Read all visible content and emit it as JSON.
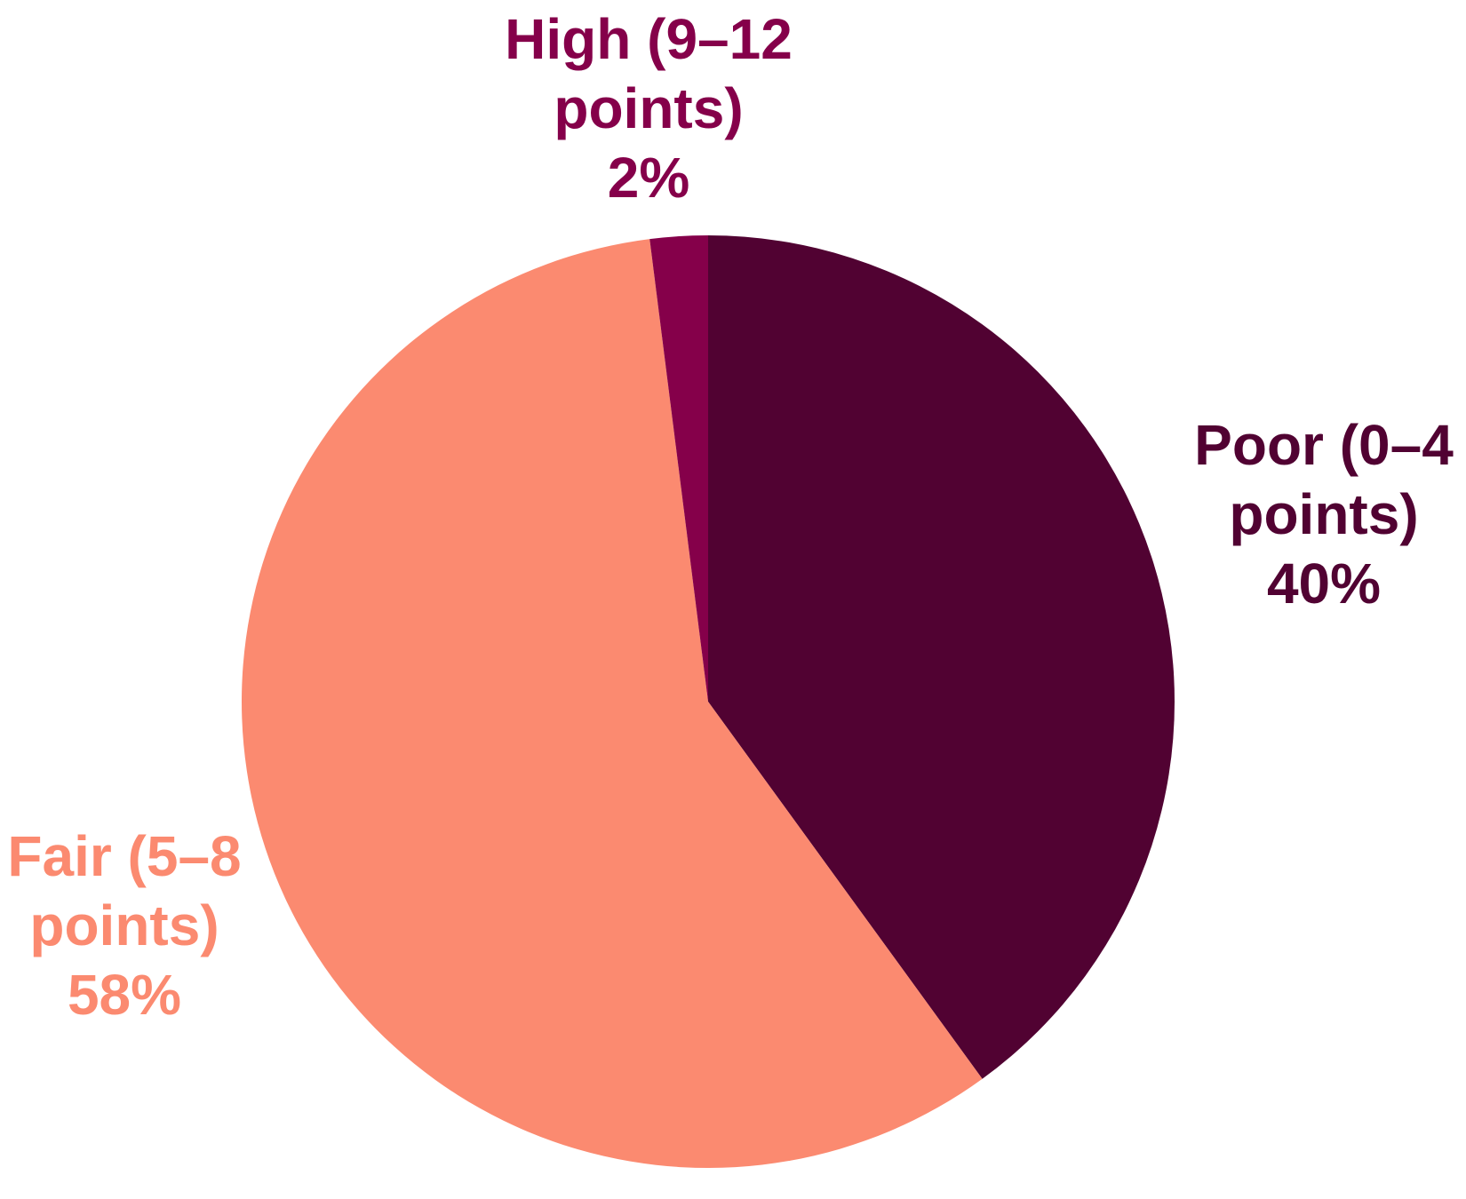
{
  "chart_data": {
    "type": "pie",
    "start_angle": "12 o'clock",
    "direction": "clockwise",
    "slices": [
      {
        "name": "Poor (0–4 points)",
        "label_line1": "Poor (0–4",
        "label_line2": "points)",
        "value": 40,
        "value_label": "40%",
        "color": "#510232"
      },
      {
        "name": "Fair (5–8 points)",
        "label_line1": "Fair (5–8",
        "label_line2": "points)",
        "value": 58,
        "value_label": "58%",
        "color": "#FB8A70"
      },
      {
        "name": "High (9–12 points)",
        "label_line1": "High (9–12",
        "label_line2": "points)",
        "value": 2,
        "value_label": "2%",
        "color": "#85004A"
      }
    ]
  }
}
